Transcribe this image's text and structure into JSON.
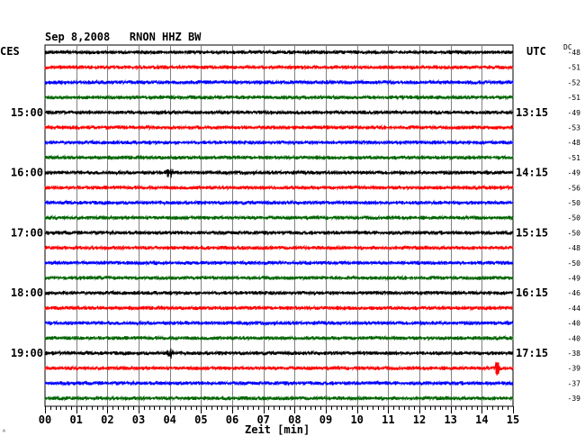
{
  "header": {
    "title": "Sep 8,2008   RNON HHZ BW",
    "left_timezone": "CES",
    "right_timezone": "UTC",
    "dc_label": "DC",
    "corner_mark": "ᴬ"
  },
  "chart_data": {
    "type": "line",
    "title": "Sep 8,2008   RNON HHZ BW",
    "xlabel": "Zeit [min]",
    "xlim": [
      0,
      15
    ],
    "x_ticks": [
      "00",
      "01",
      "02",
      "03",
      "04",
      "05",
      "06",
      "07",
      "08",
      "09",
      "10",
      "11",
      "12",
      "13",
      "14",
      "15"
    ],
    "grid": true,
    "trace_colors": [
      "#000000",
      "#ff0000",
      "#0000ff",
      "#006400"
    ],
    "left_time_labels": [
      {
        "trace": 4,
        "label": "15:00"
      },
      {
        "trace": 8,
        "label": "16:00"
      },
      {
        "trace": 12,
        "label": "17:00"
      },
      {
        "trace": 16,
        "label": "18:00"
      },
      {
        "trace": 20,
        "label": "19:00"
      }
    ],
    "right_time_labels": [
      {
        "trace": 4,
        "label": "13:15"
      },
      {
        "trace": 8,
        "label": "14:15"
      },
      {
        "trace": 12,
        "label": "15:15"
      },
      {
        "trace": 16,
        "label": "16:15"
      },
      {
        "trace": 20,
        "label": "17:15"
      }
    ],
    "dc_offsets": [
      -48,
      -51,
      -52,
      -51,
      -49,
      -53,
      -48,
      -51,
      -49,
      -56,
      -50,
      -50,
      -50,
      -48,
      -50,
      -49,
      -46,
      -44,
      -40,
      -40,
      -38,
      -39,
      -37,
      -39
    ],
    "events": [
      {
        "trace": 8,
        "minute": 4.0
      },
      {
        "trace": 20,
        "minute": 4.0
      },
      {
        "trace": 21,
        "minute": 14.5
      }
    ]
  }
}
